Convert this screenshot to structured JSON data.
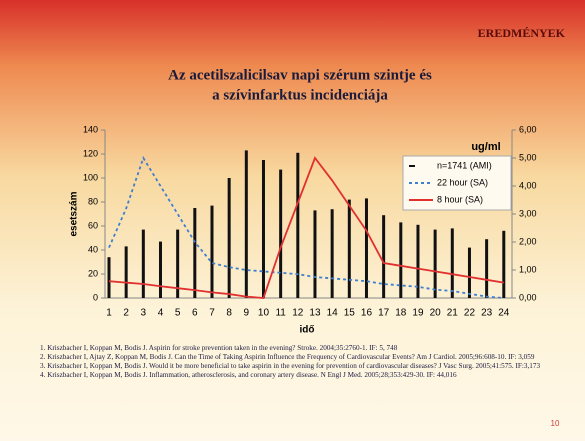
{
  "header": "EREDMÉNYEK",
  "chart_data": {
    "type": "bar_line",
    "title": [
      "Az acetilszalicilsav napi szérum szintje és",
      "a  szívinfarktus incidenciája"
    ],
    "ylabel": "esetszám",
    "y2label": "ug/ml",
    "xlabel": "idő",
    "categories": [
      "1",
      "2",
      "3",
      "4",
      "5",
      "6",
      "7",
      "8",
      "9",
      "10",
      "11",
      "12",
      "13",
      "14",
      "15",
      "16",
      "17",
      "18",
      "19",
      "20",
      "21",
      "22",
      "23",
      "24"
    ],
    "ylim": [
      0,
      140
    ],
    "yticks": [
      0,
      20,
      40,
      60,
      80,
      100,
      120,
      140
    ],
    "y2lim": [
      0,
      6
    ],
    "y2ticks": [
      {
        "value": 0,
        "label": "0,00"
      },
      {
        "value": 1,
        "label": "1,00"
      },
      {
        "value": 2,
        "label": "2,00"
      },
      {
        "value": 3,
        "label": "3,00"
      },
      {
        "value": 4,
        "label": "4,00"
      },
      {
        "value": 5,
        "label": "5,00"
      },
      {
        "value": 6,
        "label": "6,00"
      }
    ],
    "series": [
      {
        "name": "n=1741 (AMI)",
        "kind": "bar",
        "color": "#111111",
        "values": [
          34,
          43,
          57,
          47,
          57,
          75,
          77,
          100,
          123,
          115,
          107,
          121,
          73,
          74,
          82,
          83,
          69,
          63,
          61,
          57,
          58,
          42,
          49,
          56
        ]
      },
      {
        "name": "22 hour (SA)",
        "kind": "line",
        "dashed": true,
        "axis": "y2",
        "color": "#3f7fd0",
        "values": [
          1.8,
          3.2,
          5.0,
          4.0,
          3.0,
          2.0,
          1.25,
          1.1,
          1.0,
          0.95,
          0.9,
          0.85,
          0.75,
          0.7,
          0.65,
          0.6,
          0.5,
          0.45,
          0.4,
          0.3,
          0.25,
          0.15,
          0.05,
          0
        ]
      },
      {
        "name": "8 hour (SA)",
        "kind": "line",
        "axis": "y2",
        "color": "#e03030",
        "values": [
          0.6,
          0.55,
          0.5,
          0.42,
          0.35,
          0.28,
          0.2,
          0.14,
          0.05,
          0,
          1.8,
          3.4,
          5.0,
          4.2,
          3.3,
          2.4,
          1.25,
          1.15,
          1.05,
          0.95,
          0.85,
          0.75,
          0.65,
          0.55
        ]
      }
    ]
  },
  "references": [
    "1. Kriszbacher I, Koppan M, Bodis J. Aspirin for stroke prevention taken in the evening? Stroke. 2004;35:2760-1.   IF: 5, 748",
    "2. Kriszbacher I, Ajtay Z, Koppan M, Bodis J. Can the Time of Taking Aspirin Influence the Frequency of Cardiovascular Events? Am J  Cardiol. 2005;96:608-10.  IF: 3,059",
    "3. Kriszbacher I, Koppan M, Bodis J. Would it be more beneficial to take aspirin in the evening for prevention of cardiovascular diseases? J Vasc Surg. 2005;41:575. IF:3,173",
    "4. Kriszbacher I, Koppan M, Bodis J. Inflammation, atherosclerosis, and coronary artery disease. N Engl J Med. 2005;28;353:429-30. IF: 44,016"
  ],
  "page_number": "10"
}
